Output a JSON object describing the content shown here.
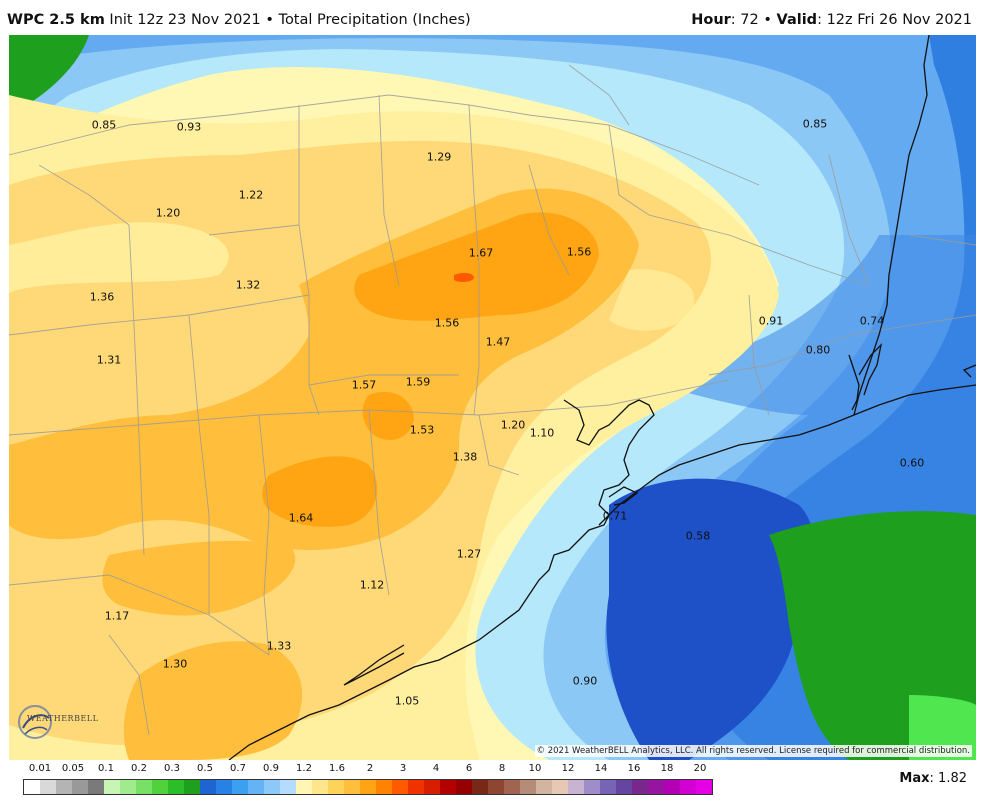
{
  "header": {
    "model": "WPC 2.5 km",
    "init": "Init 12z 23 Nov 2021",
    "separator": "•",
    "title": "Total Precipitation (Inches)",
    "hour_label": "Hour",
    "hour_value": ": 72",
    "valid_label": "Valid",
    "valid_value": ": 12z Fri 26 Nov 2021"
  },
  "map": {
    "copyright": "© 2021 WeatherBELL Analytics, LLC. All rights reserved. License required for commercial distribution.",
    "logo_text": "WEATHERBELL",
    "values": [
      {
        "label": "0.85",
        "id": "v1"
      },
      {
        "label": "0.93",
        "id": "v2"
      },
      {
        "label": "1.29",
        "id": "v3"
      },
      {
        "label": "0.85",
        "id": "v4"
      },
      {
        "label": "1.22",
        "id": "v5"
      },
      {
        "label": "1.20",
        "id": "v6"
      },
      {
        "label": "1.67",
        "id": "v7"
      },
      {
        "label": "1.56",
        "id": "v8"
      },
      {
        "label": "1.32",
        "id": "v9"
      },
      {
        "label": "1.36",
        "id": "v10"
      },
      {
        "label": "1.56",
        "id": "v11"
      },
      {
        "label": "0.91",
        "id": "v12"
      },
      {
        "label": "0.74",
        "id": "v13"
      },
      {
        "label": "1.47",
        "id": "v14"
      },
      {
        "label": "0.80",
        "id": "v15"
      },
      {
        "label": "1.31",
        "id": "v16"
      },
      {
        "label": "1.57",
        "id": "v17"
      },
      {
        "label": "1.59",
        "id": "v18"
      },
      {
        "label": "1.20",
        "id": "v19"
      },
      {
        "label": "1.10",
        "id": "v20"
      },
      {
        "label": "1.53",
        "id": "v21"
      },
      {
        "label": "1.38",
        "id": "v22"
      },
      {
        "label": "0.60",
        "id": "v23"
      },
      {
        "label": "1.64",
        "id": "v24"
      },
      {
        "label": "0.71",
        "id": "v25"
      },
      {
        "label": "0.58",
        "id": "v26"
      },
      {
        "label": "1.27",
        "id": "v27"
      },
      {
        "label": "1.12",
        "id": "v28"
      },
      {
        "label": "1.17",
        "id": "v29"
      },
      {
        "label": "1.33",
        "id": "v30"
      },
      {
        "label": "1.30",
        "id": "v31"
      },
      {
        "label": "0.90",
        "id": "v32"
      },
      {
        "label": "1.05",
        "id": "v33"
      }
    ]
  },
  "legend": {
    "ticks": [
      "0.01",
      "0.05",
      "0.1",
      "0.2",
      "0.3",
      "0.5",
      "0.7",
      "0.9",
      "1.2",
      "1.6",
      "2",
      "3",
      "4",
      "6",
      "8",
      "10",
      "12",
      "14",
      "16",
      "18",
      "20"
    ],
    "colors": [
      "#ffffff",
      "#d9d9d9",
      "#b4b4b4",
      "#999999",
      "#7a7a7a",
      "#c8f5b4",
      "#a0ec8c",
      "#78e064",
      "#50d23c",
      "#2cbe28",
      "#1ea01e",
      "#1e64d2",
      "#2882e6",
      "#3ca0f0",
      "#64b4f5",
      "#8cc8fa",
      "#b4dcff",
      "#fff5b4",
      "#ffe68c",
      "#ffd25a",
      "#ffbe3c",
      "#ffa514",
      "#ff8200",
      "#ff5a00",
      "#f03200",
      "#d71e00",
      "#b40000",
      "#960000",
      "#782814",
      "#8c4632",
      "#a06450",
      "#b48c78",
      "#d2b4a0",
      "#e6c8b4",
      "#c8b4d2",
      "#a08cc8",
      "#7864b4",
      "#6446a0",
      "#78288c",
      "#9614a0",
      "#b400b4",
      "#d200d2",
      "#e600e6"
    ],
    "max_label": "Max",
    "max_value": ": 1.82"
  }
}
